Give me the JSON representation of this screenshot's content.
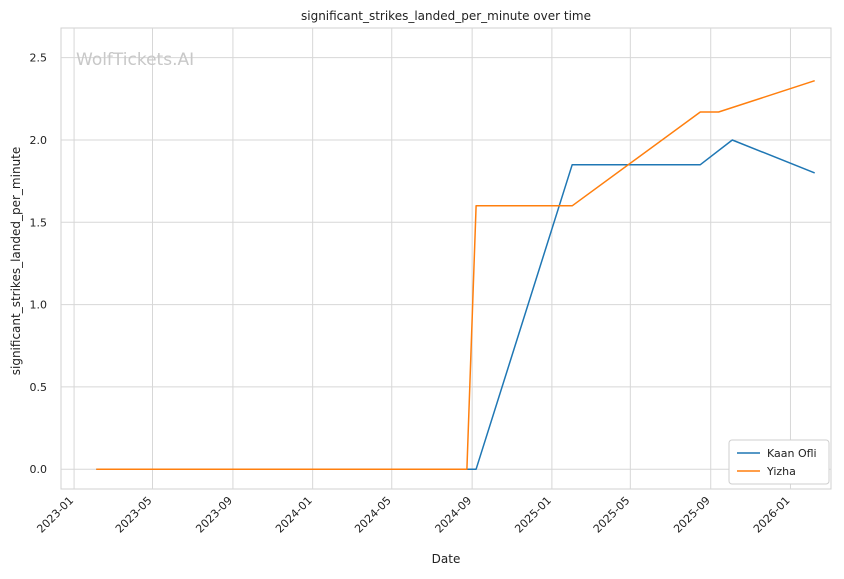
{
  "chart_data": {
    "type": "line",
    "title": "significant_strikes_landed_per_minute over time",
    "xlabel": "Date",
    "ylabel": "significant_strikes_landed_per_minute",
    "watermark": "WolfTickets.AI",
    "xlim": [
      "2022-12-12",
      "2026-03-04"
    ],
    "ylim": [
      -0.12,
      2.68
    ],
    "x_ticks": [
      "2023-01",
      "2023-05",
      "2023-09",
      "2024-01",
      "2024-05",
      "2024-09",
      "2025-01",
      "2025-05",
      "2025-09",
      "2026-01"
    ],
    "y_ticks": [
      "0.0",
      "0.5",
      "1.0",
      "1.5",
      "2.0",
      "2.5"
    ],
    "grid": true,
    "legend_position": "lower-right",
    "series": [
      {
        "name": "Kaan Ofli",
        "color": "#1f77b4",
        "points": [
          {
            "x": "2023-02-04",
            "y": 0.0
          },
          {
            "x": "2024-09-07",
            "y": 0.0
          },
          {
            "x": "2025-02-01",
            "y": 1.85
          },
          {
            "x": "2025-08-16",
            "y": 1.85
          },
          {
            "x": "2025-10-04",
            "y": 2.0
          },
          {
            "x": "2026-02-07",
            "y": 1.8
          }
        ]
      },
      {
        "name": "Yizha",
        "color": "#ff7f0e",
        "points": [
          {
            "x": "2023-02-04",
            "y": 0.0
          },
          {
            "x": "2024-08-24",
            "y": 0.0
          },
          {
            "x": "2024-09-07",
            "y": 1.6
          },
          {
            "x": "2025-02-01",
            "y": 1.6
          },
          {
            "x": "2025-08-16",
            "y": 2.17
          },
          {
            "x": "2025-09-13",
            "y": 2.17
          },
          {
            "x": "2026-02-07",
            "y": 2.36
          }
        ]
      }
    ]
  }
}
